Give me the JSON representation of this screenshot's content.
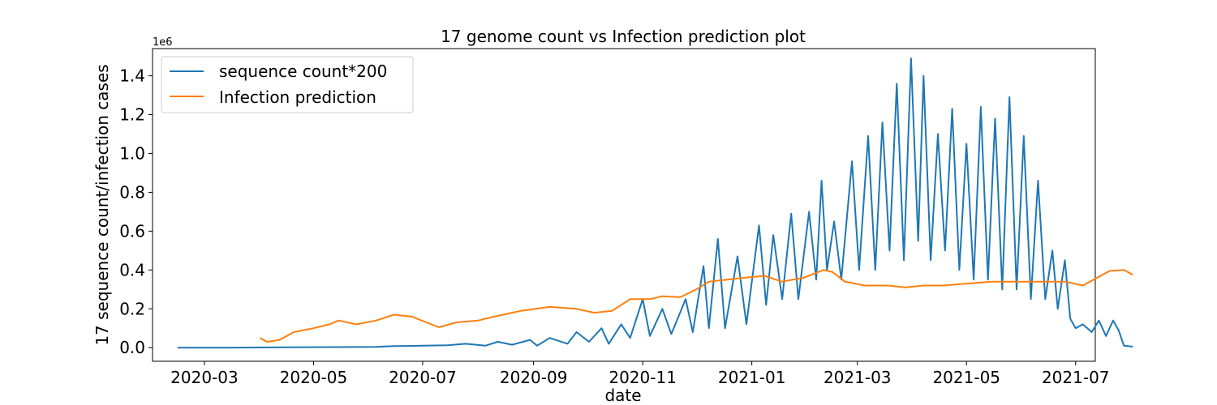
{
  "chart_data": {
    "type": "line",
    "title": "17 genome count vs Infection prediction plot",
    "xlabel": "date",
    "ylabel": "17 sequence count/infection cases",
    "y_offset_label": "1e6",
    "xlim": [
      "2020-02-01",
      "2021-07-12"
    ],
    "ylim": [
      -70000,
      1540000
    ],
    "x_ticks": [
      "2020-03-01",
      "2020-05-01",
      "2020-07-01",
      "2020-09-01",
      "2020-11-01",
      "2021-01-01",
      "2021-03-01",
      "2021-05-01",
      "2021-07-01"
    ],
    "x_tick_labels": [
      "2020-03",
      "2020-05",
      "2020-07",
      "2020-09",
      "2020-11",
      "2021-01",
      "2021-03",
      "2021-05",
      "2021-07"
    ],
    "y_ticks": [
      0,
      200000,
      400000,
      600000,
      800000,
      1000000,
      1200000,
      1400000
    ],
    "y_tick_labels": [
      "0.0",
      "0.2",
      "0.4",
      "0.6",
      "0.8",
      "1.0",
      "1.2",
      "1.4"
    ],
    "legend_position": "top-left",
    "grid": false,
    "series": [
      {
        "name": "sequence count*200",
        "color": "#1f77b4",
        "points": [
          [
            "2020-02-15",
            0
          ],
          [
            "2020-03-15",
            0
          ],
          [
            "2020-04-15",
            2000
          ],
          [
            "2020-05-15",
            3000
          ],
          [
            "2020-06-05",
            4000
          ],
          [
            "2020-06-15",
            8000
          ],
          [
            "2020-07-01",
            10000
          ],
          [
            "2020-07-15",
            12000
          ],
          [
            "2020-07-25",
            20000
          ],
          [
            "2020-08-05",
            10000
          ],
          [
            "2020-08-12",
            30000
          ],
          [
            "2020-08-20",
            15000
          ],
          [
            "2020-08-30",
            40000
          ],
          [
            "2020-09-03",
            10000
          ],
          [
            "2020-09-10",
            50000
          ],
          [
            "2020-09-20",
            20000
          ],
          [
            "2020-09-25",
            80000
          ],
          [
            "2020-10-02",
            30000
          ],
          [
            "2020-10-09",
            100000
          ],
          [
            "2020-10-13",
            20000
          ],
          [
            "2020-10-20",
            120000
          ],
          [
            "2020-10-25",
            50000
          ],
          [
            "2020-11-01",
            250000
          ],
          [
            "2020-11-05",
            60000
          ],
          [
            "2020-11-12",
            200000
          ],
          [
            "2020-11-17",
            70000
          ],
          [
            "2020-11-25",
            250000
          ],
          [
            "2020-11-29",
            80000
          ],
          [
            "2020-12-05",
            420000
          ],
          [
            "2020-12-08",
            100000
          ],
          [
            "2020-12-13",
            560000
          ],
          [
            "2020-12-17",
            100000
          ],
          [
            "2020-12-24",
            470000
          ],
          [
            "2020-12-29",
            120000
          ],
          [
            "2021-01-05",
            630000
          ],
          [
            "2021-01-09",
            220000
          ],
          [
            "2021-01-13",
            580000
          ],
          [
            "2021-01-18",
            250000
          ],
          [
            "2021-01-23",
            690000
          ],
          [
            "2021-01-27",
            250000
          ],
          [
            "2021-02-02",
            700000
          ],
          [
            "2021-02-06",
            350000
          ],
          [
            "2021-02-09",
            860000
          ],
          [
            "2021-02-12",
            400000
          ],
          [
            "2021-02-16",
            650000
          ],
          [
            "2021-02-20",
            350000
          ],
          [
            "2021-02-26",
            960000
          ],
          [
            "2021-03-02",
            400000
          ],
          [
            "2021-03-07",
            1090000
          ],
          [
            "2021-03-11",
            400000
          ],
          [
            "2021-03-15",
            1160000
          ],
          [
            "2021-03-19",
            500000
          ],
          [
            "2021-03-23",
            1360000
          ],
          [
            "2021-03-27",
            450000
          ],
          [
            "2021-03-31",
            1490000
          ],
          [
            "2021-04-04",
            550000
          ],
          [
            "2021-04-07",
            1400000
          ],
          [
            "2021-04-11",
            450000
          ],
          [
            "2021-04-15",
            1100000
          ],
          [
            "2021-04-19",
            500000
          ],
          [
            "2021-04-23",
            1230000
          ],
          [
            "2021-04-27",
            400000
          ],
          [
            "2021-05-01",
            1050000
          ],
          [
            "2021-05-05",
            350000
          ],
          [
            "2021-05-09",
            1240000
          ],
          [
            "2021-05-13",
            350000
          ],
          [
            "2021-05-17",
            1180000
          ],
          [
            "2021-05-21",
            300000
          ],
          [
            "2021-05-25",
            1290000
          ],
          [
            "2021-05-29",
            300000
          ],
          [
            "2021-06-02",
            1090000
          ],
          [
            "2021-06-06",
            250000
          ],
          [
            "2021-06-10",
            860000
          ],
          [
            "2021-06-14",
            250000
          ],
          [
            "2021-06-18",
            500000
          ],
          [
            "2021-06-21",
            200000
          ],
          [
            "2021-06-25",
            450000
          ],
          [
            "2021-06-28",
            150000
          ],
          [
            "2021-07-01",
            100000
          ],
          [
            "2021-07-05",
            120000
          ],
          [
            "2021-07-10",
            80000
          ],
          [
            "2021-07-14",
            140000
          ],
          [
            "2021-07-18",
            60000
          ],
          [
            "2021-07-22",
            140000
          ],
          [
            "2021-07-25",
            90000
          ],
          [
            "2021-07-28",
            10000
          ],
          [
            "2021-08-02",
            5000
          ]
        ]
      },
      {
        "name": "Infection prediction",
        "color": "#ff7f0e",
        "points": [
          [
            "2020-04-01",
            50000
          ],
          [
            "2020-04-05",
            30000
          ],
          [
            "2020-04-12",
            40000
          ],
          [
            "2020-04-20",
            80000
          ],
          [
            "2020-05-01",
            100000
          ],
          [
            "2020-05-10",
            120000
          ],
          [
            "2020-05-15",
            140000
          ],
          [
            "2020-05-25",
            120000
          ],
          [
            "2020-06-05",
            140000
          ],
          [
            "2020-06-15",
            170000
          ],
          [
            "2020-06-25",
            160000
          ],
          [
            "2020-07-10",
            105000
          ],
          [
            "2020-07-20",
            130000
          ],
          [
            "2020-08-01",
            140000
          ],
          [
            "2020-08-10",
            160000
          ],
          [
            "2020-08-25",
            190000
          ],
          [
            "2020-09-10",
            210000
          ],
          [
            "2020-09-25",
            200000
          ],
          [
            "2020-10-05",
            180000
          ],
          [
            "2020-10-15",
            190000
          ],
          [
            "2020-10-25",
            250000
          ],
          [
            "2020-11-05",
            250000
          ],
          [
            "2020-11-12",
            265000
          ],
          [
            "2020-11-22",
            260000
          ],
          [
            "2020-12-01",
            300000
          ],
          [
            "2020-12-08",
            340000
          ],
          [
            "2020-12-18",
            350000
          ],
          [
            "2020-12-28",
            360000
          ],
          [
            "2021-01-08",
            370000
          ],
          [
            "2021-01-18",
            340000
          ],
          [
            "2021-01-30",
            360000
          ],
          [
            "2021-02-10",
            400000
          ],
          [
            "2021-02-15",
            390000
          ],
          [
            "2021-02-22",
            340000
          ],
          [
            "2021-03-05",
            320000
          ],
          [
            "2021-03-18",
            320000
          ],
          [
            "2021-03-28",
            310000
          ],
          [
            "2021-04-07",
            320000
          ],
          [
            "2021-04-18",
            320000
          ],
          [
            "2021-05-01",
            330000
          ],
          [
            "2021-05-15",
            340000
          ],
          [
            "2021-06-01",
            340000
          ],
          [
            "2021-06-15",
            340000
          ],
          [
            "2021-06-25",
            340000
          ],
          [
            "2021-07-05",
            320000
          ],
          [
            "2021-07-15",
            370000
          ],
          [
            "2021-07-20",
            395000
          ],
          [
            "2021-07-28",
            400000
          ],
          [
            "2021-08-02",
            375000
          ]
        ]
      }
    ]
  }
}
